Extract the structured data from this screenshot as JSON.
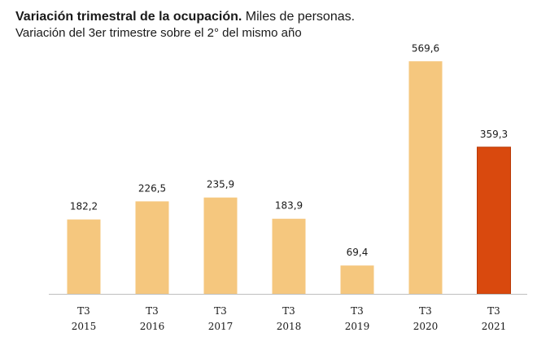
{
  "header": {
    "title_bold": "Variación trimestral de la ocupación.",
    "title_rest": " Miles de personas.",
    "subtitle": "Variación del 3er trimestre sobre el 2° del mismo año"
  },
  "chart_data": {
    "type": "bar",
    "categories": [
      {
        "quarter": "T3",
        "year": "2015"
      },
      {
        "quarter": "T3",
        "year": "2016"
      },
      {
        "quarter": "T3",
        "year": "2017"
      },
      {
        "quarter": "T3",
        "year": "2018"
      },
      {
        "quarter": "T3",
        "year": "2019"
      },
      {
        "quarter": "T3",
        "year": "2020"
      },
      {
        "quarter": "T3",
        "year": "2021"
      }
    ],
    "values": [
      182.2,
      226.5,
      235.9,
      183.9,
      69.4,
      569.6,
      359.3
    ],
    "value_labels": [
      "182,2",
      "226,5",
      "235,9",
      "183,9",
      "69,4",
      "569,6",
      "359,3"
    ],
    "ylim": [
      0,
      600
    ],
    "grid": false,
    "colors": {
      "default_bar": "#F5C77E",
      "highlight_bar": "#D9490E",
      "highlight_bar_stroke": "#B83A08",
      "axis": "#BFBFBF"
    },
    "highlight_index": 6
  }
}
